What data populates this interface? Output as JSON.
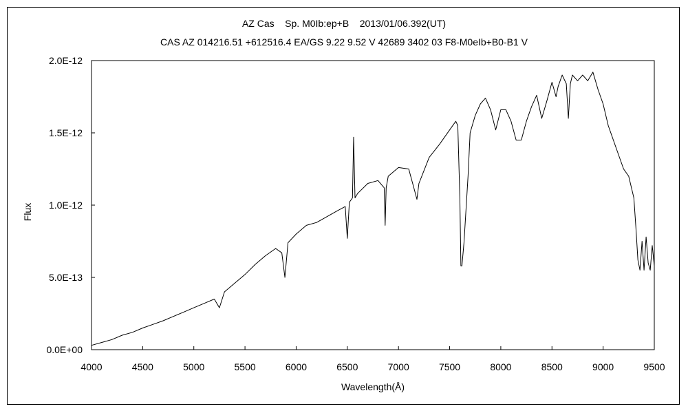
{
  "chart_data": {
    "type": "line",
    "title": "AZ Cas    Sp. M0Ib:ep+B    2013/01/06.392(UT)",
    "subtitle": "CAS AZ 014216.51 +612516.4 EA/GS 9.22 9.52 V 42689 3402 03 F8-M0eIb+B0-B1 V",
    "xlabel": "Wavelength(Å)",
    "ylabel": "Flux",
    "xlim": [
      4000,
      9500
    ],
    "ylim": [
      0,
      2e-12
    ],
    "x_ticks": [
      4000,
      4500,
      5000,
      5500,
      6000,
      6500,
      7000,
      7500,
      8000,
      8500,
      9000,
      9500
    ],
    "x_tick_labels": [
      "4000",
      "4500",
      "5000",
      "5500",
      "6000",
      "6500",
      "7000",
      "7500",
      "8000",
      "8500",
      "9000",
      "9500"
    ],
    "y_ticks": [
      0,
      5e-13,
      1e-12,
      1.5e-12,
      2e-12
    ],
    "y_tick_labels": [
      "0.0E+00",
      "5.0E-13",
      "1.0E-12",
      "1.5E-12",
      "2.0E-12"
    ],
    "grid": false,
    "legend": "none",
    "line_color": "#000000",
    "series": [
      {
        "x": [
          4000,
          4100,
          4200,
          4300,
          4400,
          4500,
          4600,
          4700,
          4800,
          4900,
          5000,
          5100,
          5200,
          5250,
          5300,
          5400,
          5500,
          5600,
          5700,
          5800,
          5860,
          5890,
          5920,
          6000,
          6100,
          6200,
          6300,
          6400,
          6480,
          6500,
          6520,
          6550,
          6562,
          6575,
          6600,
          6700,
          6800,
          6860,
          6870,
          6880,
          6900,
          7000,
          7100,
          7150,
          7180,
          7200,
          7300,
          7400,
          7500,
          7560,
          7580,
          7600,
          7610,
          7620,
          7640,
          7680,
          7700,
          7750,
          7800,
          7850,
          7900,
          7950,
          8000,
          8050,
          8100,
          8150,
          8200,
          8250,
          8300,
          8350,
          8400,
          8450,
          8500,
          8540,
          8560,
          8600,
          8640,
          8660,
          8680,
          8700,
          8750,
          8800,
          8850,
          8900,
          8950,
          9000,
          9050,
          9100,
          9150,
          9200,
          9250,
          9300,
          9320,
          9340,
          9360,
          9380,
          9400,
          9420,
          9440,
          9460,
          9480,
          9500
        ],
        "y": [
          3e-14,
          5e-14,
          7e-14,
          1e-13,
          1.2e-13,
          1.5e-13,
          1.75e-13,
          2e-13,
          2.3e-13,
          2.6e-13,
          2.9e-13,
          3.2e-13,
          3.5e-13,
          2.9e-13,
          4e-13,
          4.6e-13,
          5.2e-13,
          5.9e-13,
          6.5e-13,
          7e-13,
          6.7e-13,
          5e-13,
          7.4e-13,
          8e-13,
          8.6e-13,
          8.8e-13,
          9.2e-13,
          9.6e-13,
          9.9e-13,
          7.7e-13,
          1.02e-12,
          1.05e-12,
          1.47e-12,
          1.05e-12,
          1.08e-12,
          1.15e-12,
          1.17e-12,
          1.12e-12,
          8.6e-13,
          1.12e-12,
          1.2e-12,
          1.26e-12,
          1.25e-12,
          1.12e-12,
          1.04e-12,
          1.15e-12,
          1.33e-12,
          1.42e-12,
          1.52e-12,
          1.58e-12,
          1.55e-12,
          1.05e-12,
          5.8e-13,
          5.8e-13,
          7.4e-13,
          1.2e-12,
          1.5e-12,
          1.62e-12,
          1.7e-12,
          1.74e-12,
          1.66e-12,
          1.52e-12,
          1.66e-12,
          1.66e-12,
          1.58e-12,
          1.45e-12,
          1.45e-12,
          1.58e-12,
          1.68e-12,
          1.76e-12,
          1.6e-12,
          1.72e-12,
          1.85e-12,
          1.75e-12,
          1.82e-12,
          1.9e-12,
          1.84e-12,
          1.6e-12,
          1.84e-12,
          1.9e-12,
          1.86e-12,
          1.9e-12,
          1.86e-12,
          1.92e-12,
          1.8e-12,
          1.7e-12,
          1.55e-12,
          1.45e-12,
          1.35e-12,
          1.25e-12,
          1.2e-12,
          1.05e-12,
          8.5e-13,
          6.2e-13,
          5.5e-13,
          7.5e-13,
          5.5e-13,
          7.8e-13,
          6e-13,
          5.5e-13,
          7.2e-13,
          5.8e-13
        ]
      }
    ]
  }
}
